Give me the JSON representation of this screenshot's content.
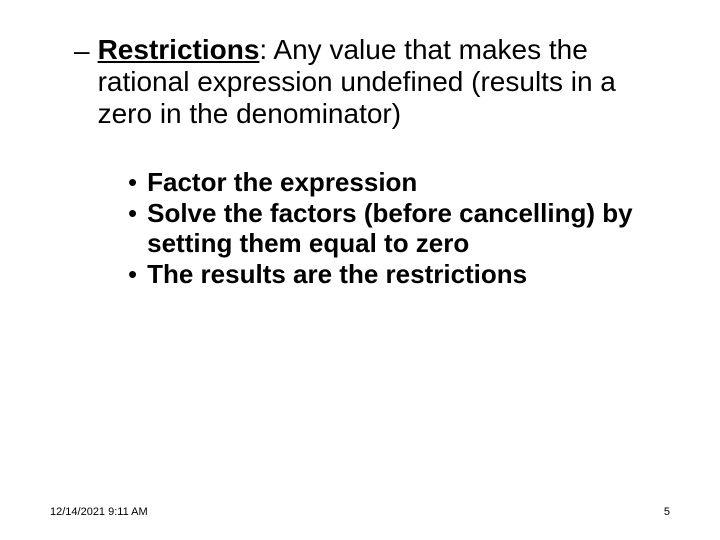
{
  "main": {
    "dash": "–",
    "term": "Restrictions",
    "colon": ":",
    "definition": " Any value that makes the rational expression undefined (results in a zero in the denominator)"
  },
  "steps": {
    "bullet": "•",
    "items": [
      "Factor the expression",
      "Solve the factors (before cancelling) by setting them equal to zero",
      "The results are the restrictions"
    ]
  },
  "footer": {
    "timestamp": "12/14/2021 9:11 AM",
    "page": "5"
  },
  "style": {
    "background_color": "#ffffff",
    "text_color": "#000000",
    "main_fontsize": 28,
    "sub_fontsize": 26,
    "footer_fontsize": 11,
    "font_family": "Arial"
  }
}
